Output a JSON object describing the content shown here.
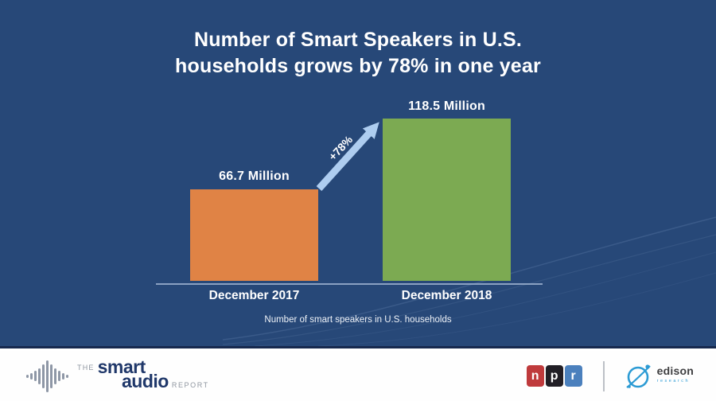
{
  "slide": {
    "title_line1": "Number of Smart Speakers in U.S.",
    "title_line2": "households grows by 78% in one year"
  },
  "chart_data": {
    "type": "bar",
    "title": "Number of Smart Speakers in U.S. households grows by 78% in one year",
    "categories": [
      "December 2017",
      "December 2018"
    ],
    "values": [
      66.7,
      118.5
    ],
    "value_labels": [
      "66.7 Million",
      "118.5 Million"
    ],
    "unit": "millions of smart speakers",
    "annotation": "+78%",
    "caption": "Number of smart speakers in U.S. households",
    "bar_colors": [
      "#E08345",
      "#7CAA52"
    ],
    "ylim": [
      0,
      130
    ],
    "grid": false,
    "legend": "none"
  },
  "footer": {
    "smart_audio": {
      "the": "THE",
      "smart": "smart",
      "audio": "audio",
      "report": "REPORT"
    },
    "npr": {
      "letters": [
        "n",
        "p",
        "r"
      ],
      "colors": [
        "#bf3a3c",
        "#211e25",
        "#4b80bd"
      ]
    },
    "edison": {
      "name": "edison",
      "sub": "research"
    }
  },
  "colors": {
    "background": "#274878",
    "background_edge": "#17294E",
    "bar_2017": "#E08345",
    "bar_2018": "#7CAA52",
    "arrow": "#AECDF0",
    "axis": "#8FA6C6",
    "text": "#FFFFFF",
    "footer_background": "#FEFEFE",
    "logo_navy": "#20386A",
    "logo_gray": "#8F96A0",
    "edison_blue": "#2C9BD4"
  }
}
